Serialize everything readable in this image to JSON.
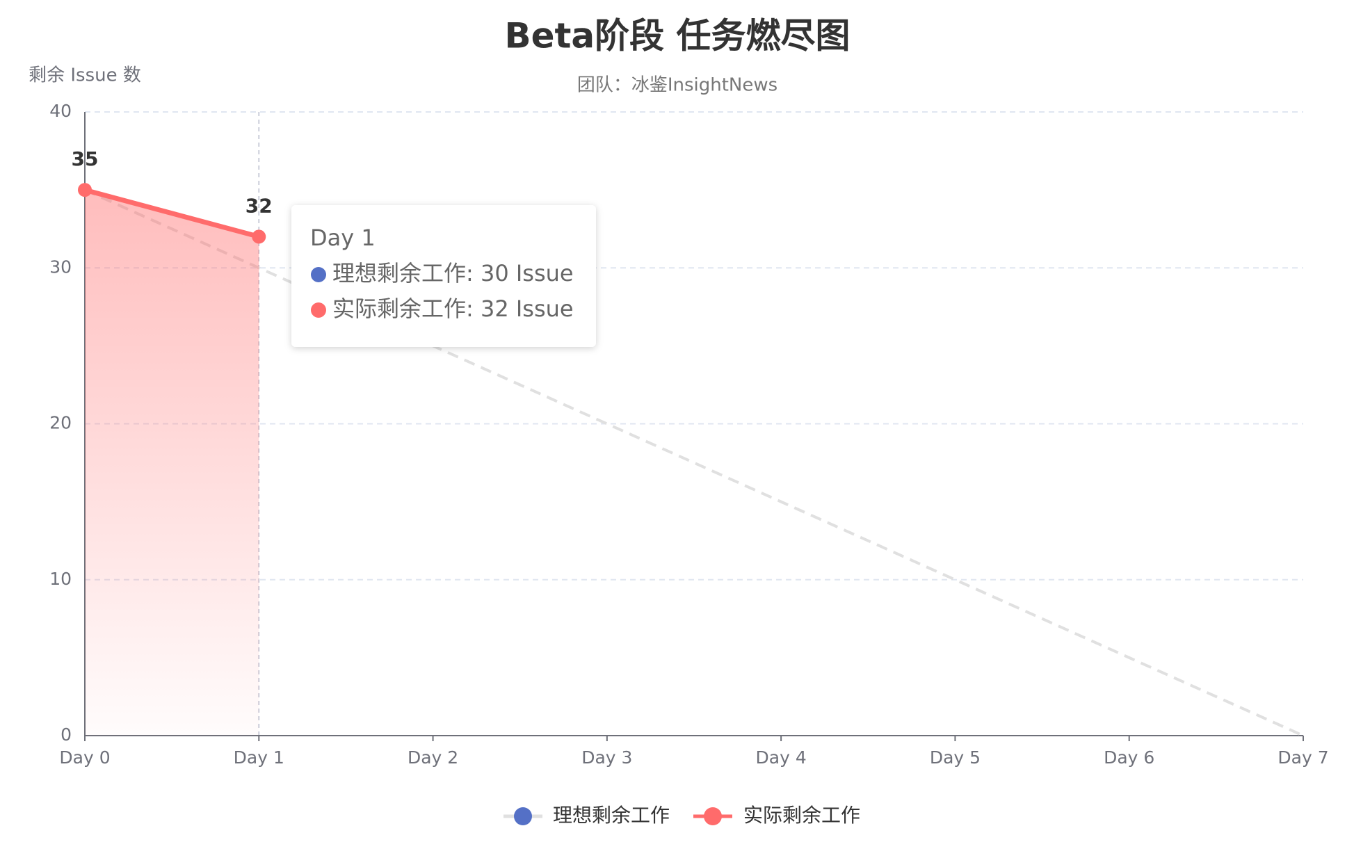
{
  "chart_data": {
    "type": "line",
    "title": "Beta阶段 任务燃尽图",
    "subtitle": "团队：冰鉴InsightNews",
    "y_axis_label": "剩余 Issue 数",
    "categories": [
      "Day 0",
      "Day 1",
      "Day 2",
      "Day 3",
      "Day 4",
      "Day 5",
      "Day 6",
      "Day 7"
    ],
    "series": [
      {
        "name": "理想剩余工作",
        "color": "#5470c6",
        "line_color": "#e0e0e0",
        "dashed": true,
        "values": [
          35,
          30,
          25,
          20,
          15,
          10,
          5,
          0
        ]
      },
      {
        "name": "实际剩余工作",
        "color": "#ff6b6b",
        "area": true,
        "show_labels": true,
        "values": [
          35,
          32,
          null,
          null,
          null,
          null,
          null,
          null
        ]
      }
    ],
    "ylim": [
      0,
      40
    ],
    "yticks": [
      0,
      10,
      20,
      30,
      40
    ],
    "grid": true,
    "legend": "bottom",
    "tooltip": {
      "title": "Day 1",
      "lines": [
        "理想剩余工作: 30 Issue",
        "实际剩余工作: 32 Issue"
      ]
    }
  }
}
